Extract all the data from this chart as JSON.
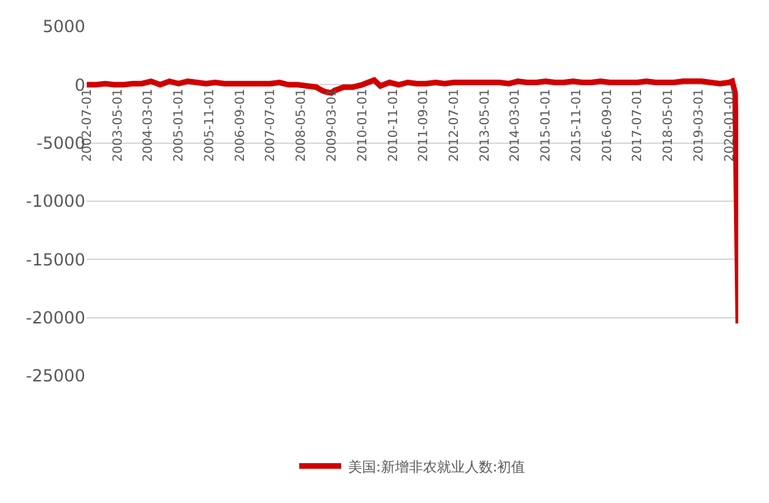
{
  "chart_data": {
    "type": "line",
    "ylim": [
      -25000,
      5000
    ],
    "yticks": [
      -25000,
      -20000,
      -15000,
      -10000,
      -5000,
      0,
      5000
    ],
    "xlim": [
      "2002-07-01",
      "2020-04-01"
    ],
    "xticks": [
      "2002-07-01",
      "2003-05-01",
      "2004-03-01",
      "2005-01-01",
      "2005-11-01",
      "2006-09-01",
      "2007-07-01",
      "2008-05-01",
      "2009-03-01",
      "2010-01-01",
      "2010-11-01",
      "2011-09-01",
      "2012-07-01",
      "2013-05-01",
      "2014-03-01",
      "2015-01-01",
      "2015-11-01",
      "2016-09-01",
      "2017-07-01",
      "2018-05-01",
      "2019-03-01",
      "2020-01-01"
    ],
    "grid": "y",
    "legend": "bottom",
    "marker": "none",
    "line_style": "solid",
    "series": [
      {
        "name": "美国:新增非农就业人数:初值",
        "color": "#d00000",
        "x": [
          "2002-07",
          "2002-10",
          "2003-01",
          "2003-04",
          "2003-07",
          "2003-10",
          "2004-01",
          "2004-04",
          "2004-07",
          "2004-10",
          "2005-01",
          "2005-04",
          "2005-07",
          "2005-10",
          "2006-01",
          "2006-04",
          "2006-07",
          "2006-10",
          "2007-01",
          "2007-04",
          "2007-07",
          "2007-10",
          "2008-01",
          "2008-04",
          "2008-07",
          "2008-10",
          "2008-12",
          "2009-01",
          "2009-03",
          "2009-04",
          "2009-07",
          "2009-10",
          "2010-01",
          "2010-03",
          "2010-05",
          "2010-07",
          "2010-10",
          "2011-01",
          "2011-04",
          "2011-07",
          "2011-10",
          "2012-01",
          "2012-04",
          "2012-07",
          "2012-10",
          "2013-01",
          "2013-04",
          "2013-07",
          "2013-10",
          "2014-01",
          "2014-04",
          "2014-07",
          "2014-10",
          "2015-01",
          "2015-04",
          "2015-07",
          "2015-10",
          "2016-01",
          "2016-04",
          "2016-07",
          "2016-10",
          "2017-01",
          "2017-04",
          "2017-07",
          "2017-10",
          "2018-01",
          "2018-04",
          "2018-07",
          "2018-10",
          "2019-01",
          "2019-04",
          "2019-07",
          "2019-10",
          "2020-01",
          "2020-02",
          "2020-03",
          "2020-04"
        ],
        "values": [
          0,
          0,
          100,
          0,
          0,
          100,
          100,
          300,
          0,
          300,
          100,
          300,
          200,
          100,
          200,
          100,
          100,
          100,
          100,
          100,
          100,
          200,
          0,
          0,
          -100,
          -200,
          -500,
          -600,
          -700,
          -500,
          -200,
          -200,
          0,
          200,
          400,
          -100,
          200,
          0,
          200,
          100,
          100,
          200,
          100,
          200,
          200,
          200,
          200,
          200,
          200,
          100,
          300,
          200,
          200,
          300,
          200,
          200,
          300,
          200,
          200,
          300,
          200,
          200,
          200,
          200,
          300,
          200,
          200,
          200,
          300,
          300,
          300,
          200,
          100,
          200,
          300,
          -700,
          -20500
        ]
      }
    ]
  }
}
